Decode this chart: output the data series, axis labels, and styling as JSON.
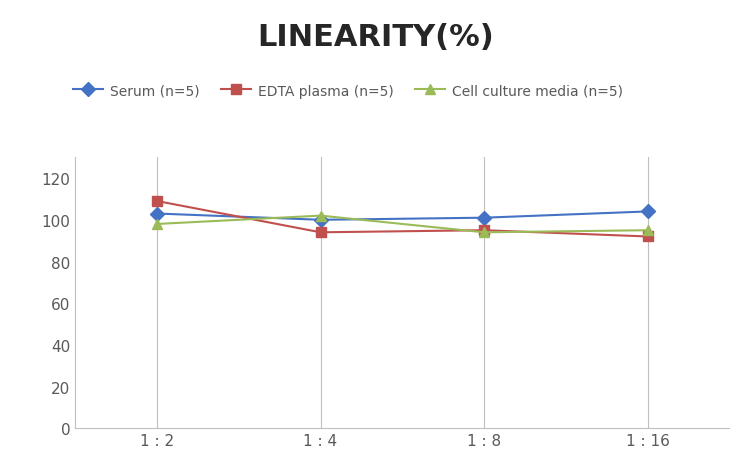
{
  "title": "LINEARITY(%)",
  "x_labels": [
    "1 : 2",
    "1 : 4",
    "1 : 8",
    "1 : 16"
  ],
  "x_positions": [
    0,
    1,
    2,
    3
  ],
  "series": [
    {
      "label": "Serum (n=5)",
      "values": [
        103,
        100,
        101,
        104
      ],
      "color": "#4472C4",
      "marker": "D",
      "markersize": 7,
      "linewidth": 1.5
    },
    {
      "label": "EDTA plasma (n=5)",
      "values": [
        109,
        94,
        95,
        92
      ],
      "color": "#C0504D",
      "marker": "s",
      "markersize": 7,
      "linewidth": 1.5
    },
    {
      "label": "Cell culture media (n=5)",
      "values": [
        98,
        102,
        94,
        95
      ],
      "color": "#9BBB59",
      "marker": "^",
      "markersize": 7,
      "linewidth": 1.5
    }
  ],
  "ylim": [
    0,
    130
  ],
  "yticks": [
    0,
    20,
    40,
    60,
    80,
    100,
    120
  ],
  "background_color": "#ffffff",
  "title_fontsize": 22,
  "title_fontweight": "bold",
  "legend_fontsize": 10,
  "tick_fontsize": 11
}
